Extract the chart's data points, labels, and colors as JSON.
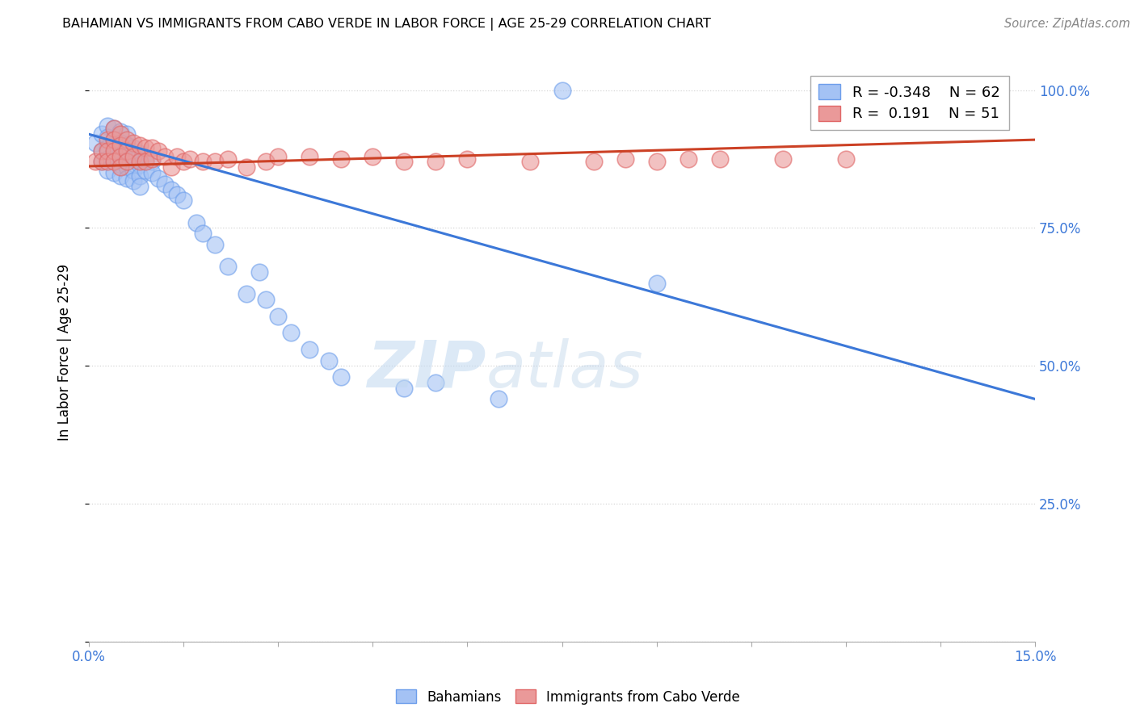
{
  "title": "BAHAMIAN VS IMMIGRANTS FROM CABO VERDE IN LABOR FORCE | AGE 25-29 CORRELATION CHART",
  "source": "Source: ZipAtlas.com",
  "ylabel": "In Labor Force | Age 25-29",
  "xlim": [
    0.0,
    0.15
  ],
  "ylim": [
    0.0,
    1.05
  ],
  "blue_color": "#a4c2f4",
  "pink_color": "#ea9999",
  "blue_edge_color": "#6d9eeb",
  "pink_edge_color": "#e06666",
  "blue_line_color": "#3c78d8",
  "pink_line_color": "#cc4125",
  "legend_R_blue": "-0.348",
  "legend_N_blue": "62",
  "legend_R_pink": " 0.191",
  "legend_N_pink": "51",
  "watermark_zip": "ZIP",
  "watermark_atlas": "atlas",
  "blue_scatter_x": [
    0.001,
    0.002,
    0.002,
    0.002,
    0.003,
    0.003,
    0.003,
    0.003,
    0.003,
    0.004,
    0.004,
    0.004,
    0.004,
    0.004,
    0.004,
    0.004,
    0.005,
    0.005,
    0.005,
    0.005,
    0.005,
    0.005,
    0.006,
    0.006,
    0.006,
    0.006,
    0.006,
    0.006,
    0.007,
    0.007,
    0.007,
    0.007,
    0.008,
    0.008,
    0.008,
    0.008,
    0.009,
    0.009,
    0.01,
    0.01,
    0.011,
    0.012,
    0.013,
    0.014,
    0.015,
    0.017,
    0.018,
    0.02,
    0.022,
    0.025,
    0.027,
    0.028,
    0.03,
    0.032,
    0.035,
    0.038,
    0.04,
    0.05,
    0.055,
    0.065,
    0.075,
    0.09
  ],
  "blue_scatter_y": [
    0.905,
    0.92,
    0.89,
    0.87,
    0.935,
    0.915,
    0.895,
    0.875,
    0.855,
    0.93,
    0.91,
    0.89,
    0.91,
    0.87,
    0.85,
    0.9,
    0.925,
    0.905,
    0.885,
    0.905,
    0.865,
    0.845,
    0.92,
    0.9,
    0.88,
    0.86,
    0.84,
    0.9,
    0.895,
    0.875,
    0.855,
    0.835,
    0.885,
    0.865,
    0.845,
    0.825,
    0.875,
    0.855,
    0.87,
    0.85,
    0.84,
    0.83,
    0.82,
    0.81,
    0.8,
    0.76,
    0.74,
    0.72,
    0.68,
    0.63,
    0.67,
    0.62,
    0.59,
    0.56,
    0.53,
    0.51,
    0.48,
    0.46,
    0.47,
    0.44,
    1.0,
    0.65
  ],
  "pink_scatter_x": [
    0.001,
    0.002,
    0.002,
    0.003,
    0.003,
    0.003,
    0.004,
    0.004,
    0.004,
    0.004,
    0.005,
    0.005,
    0.005,
    0.005,
    0.006,
    0.006,
    0.006,
    0.007,
    0.007,
    0.008,
    0.008,
    0.009,
    0.009,
    0.01,
    0.01,
    0.011,
    0.012,
    0.013,
    0.014,
    0.015,
    0.016,
    0.018,
    0.02,
    0.022,
    0.025,
    0.028,
    0.03,
    0.035,
    0.04,
    0.045,
    0.05,
    0.055,
    0.06,
    0.07,
    0.08,
    0.085,
    0.09,
    0.095,
    0.1,
    0.11,
    0.12
  ],
  "pink_scatter_y": [
    0.87,
    0.89,
    0.87,
    0.91,
    0.89,
    0.87,
    0.93,
    0.91,
    0.89,
    0.87,
    0.92,
    0.9,
    0.88,
    0.86,
    0.91,
    0.89,
    0.87,
    0.905,
    0.88,
    0.9,
    0.87,
    0.895,
    0.87,
    0.895,
    0.875,
    0.89,
    0.88,
    0.86,
    0.88,
    0.87,
    0.875,
    0.87,
    0.87,
    0.875,
    0.86,
    0.87,
    0.88,
    0.88,
    0.875,
    0.88,
    0.87,
    0.87,
    0.875,
    0.87,
    0.87,
    0.875,
    0.87,
    0.875,
    0.875,
    0.875,
    0.875
  ],
  "blue_trend_x": [
    0.0,
    0.15
  ],
  "blue_trend_y": [
    0.92,
    0.44
  ],
  "pink_trend_x": [
    0.0,
    0.15
  ],
  "pink_trend_y": [
    0.862,
    0.91
  ]
}
